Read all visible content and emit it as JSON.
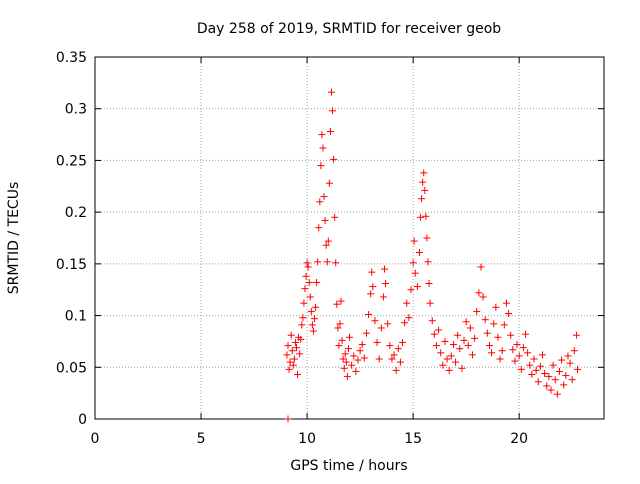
{
  "chart_data": {
    "type": "scatter",
    "title": "Day 258 of 2019, SRMTID for receiver geob",
    "xlabel": "GPS time / hours",
    "ylabel": "SRMTID / TECUs",
    "xlim": [
      0,
      24
    ],
    "ylim": [
      0,
      0.35
    ],
    "xticks": [
      0,
      5,
      10,
      15,
      20
    ],
    "yticks": [
      0,
      0.05,
      0.1,
      0.15,
      0.2,
      0.25,
      0.3,
      0.35
    ],
    "grid": true,
    "marker": "+",
    "color": "#ff0000",
    "series": [
      {
        "name": "SRMTID",
        "points": [
          [
            9.1,
            0.0
          ],
          [
            9.05,
            0.062
          ],
          [
            9.1,
            0.071
          ],
          [
            9.15,
            0.048
          ],
          [
            9.2,
            0.055
          ],
          [
            9.25,
            0.081
          ],
          [
            9.3,
            0.066
          ],
          [
            9.35,
            0.052
          ],
          [
            9.4,
            0.058
          ],
          [
            9.45,
            0.074
          ],
          [
            9.5,
            0.069
          ],
          [
            9.55,
            0.043
          ],
          [
            9.6,
            0.079
          ],
          [
            9.65,
            0.063
          ],
          [
            9.7,
            0.077
          ],
          [
            9.75,
            0.091
          ],
          [
            9.8,
            0.098
          ],
          [
            9.85,
            0.112
          ],
          [
            9.9,
            0.126
          ],
          [
            9.95,
            0.138
          ],
          [
            10.0,
            0.151
          ],
          [
            10.05,
            0.147
          ],
          [
            10.1,
            0.132
          ],
          [
            10.15,
            0.118
          ],
          [
            10.2,
            0.104
          ],
          [
            10.25,
            0.091
          ],
          [
            10.3,
            0.085
          ],
          [
            10.35,
            0.097
          ],
          [
            10.4,
            0.108
          ],
          [
            10.45,
            0.132
          ],
          [
            10.5,
            0.152
          ],
          [
            10.55,
            0.185
          ],
          [
            10.6,
            0.21
          ],
          [
            10.65,
            0.245
          ],
          [
            10.7,
            0.275
          ],
          [
            10.75,
            0.262
          ],
          [
            10.8,
            0.215
          ],
          [
            10.85,
            0.192
          ],
          [
            10.9,
            0.168
          ],
          [
            10.95,
            0.152
          ],
          [
            11.0,
            0.172
          ],
          [
            11.05,
            0.228
          ],
          [
            11.1,
            0.278
          ],
          [
            11.15,
            0.316
          ],
          [
            11.2,
            0.298
          ],
          [
            11.25,
            0.251
          ],
          [
            11.3,
            0.195
          ],
          [
            11.35,
            0.151
          ],
          [
            11.4,
            0.111
          ],
          [
            11.45,
            0.088
          ],
          [
            11.5,
            0.071
          ],
          [
            11.55,
            0.092
          ],
          [
            11.6,
            0.114
          ],
          [
            11.65,
            0.076
          ],
          [
            11.7,
            0.058
          ],
          [
            11.75,
            0.049
          ],
          [
            11.8,
            0.063
          ],
          [
            11.85,
            0.055
          ],
          [
            11.9,
            0.041
          ],
          [
            11.95,
            0.068
          ],
          [
            12.0,
            0.079
          ],
          [
            12.1,
            0.052
          ],
          [
            12.2,
            0.061
          ],
          [
            12.3,
            0.046
          ],
          [
            12.4,
            0.057
          ],
          [
            12.5,
            0.066
          ],
          [
            12.6,
            0.072
          ],
          [
            12.7,
            0.059
          ],
          [
            12.8,
            0.083
          ],
          [
            12.9,
            0.101
          ],
          [
            13.0,
            0.121
          ],
          [
            13.05,
            0.142
          ],
          [
            13.1,
            0.128
          ],
          [
            13.2,
            0.095
          ],
          [
            13.3,
            0.074
          ],
          [
            13.4,
            0.058
          ],
          [
            13.5,
            0.088
          ],
          [
            13.6,
            0.118
          ],
          [
            13.65,
            0.145
          ],
          [
            13.7,
            0.131
          ],
          [
            13.8,
            0.092
          ],
          [
            13.9,
            0.071
          ],
          [
            14.0,
            0.058
          ],
          [
            14.1,
            0.062
          ],
          [
            14.2,
            0.047
          ],
          [
            14.3,
            0.068
          ],
          [
            14.4,
            0.055
          ],
          [
            14.5,
            0.074
          ],
          [
            14.6,
            0.093
          ],
          [
            14.7,
            0.112
          ],
          [
            14.8,
            0.098
          ],
          [
            14.9,
            0.125
          ],
          [
            15.0,
            0.151
          ],
          [
            15.05,
            0.172
          ],
          [
            15.1,
            0.141
          ],
          [
            15.2,
            0.128
          ],
          [
            15.3,
            0.161
          ],
          [
            15.35,
            0.195
          ],
          [
            15.4,
            0.213
          ],
          [
            15.45,
            0.229
          ],
          [
            15.5,
            0.238
          ],
          [
            15.55,
            0.221
          ],
          [
            15.6,
            0.196
          ],
          [
            15.65,
            0.175
          ],
          [
            15.7,
            0.152
          ],
          [
            15.75,
            0.131
          ],
          [
            15.8,
            0.112
          ],
          [
            15.9,
            0.095
          ],
          [
            16.0,
            0.082
          ],
          [
            16.1,
            0.071
          ],
          [
            16.2,
            0.086
          ],
          [
            16.3,
            0.064
          ],
          [
            16.4,
            0.052
          ],
          [
            16.5,
            0.075
          ],
          [
            16.6,
            0.058
          ],
          [
            16.7,
            0.047
          ],
          [
            16.8,
            0.061
          ],
          [
            16.9,
            0.072
          ],
          [
            17.0,
            0.055
          ],
          [
            17.1,
            0.081
          ],
          [
            17.2,
            0.068
          ],
          [
            17.3,
            0.049
          ],
          [
            17.4,
            0.076
          ],
          [
            17.5,
            0.094
          ],
          [
            17.6,
            0.071
          ],
          [
            17.7,
            0.088
          ],
          [
            17.8,
            0.062
          ],
          [
            17.9,
            0.078
          ],
          [
            18.0,
            0.104
          ],
          [
            18.1,
            0.122
          ],
          [
            18.2,
            0.147
          ],
          [
            18.3,
            0.118
          ],
          [
            18.4,
            0.096
          ],
          [
            18.5,
            0.083
          ],
          [
            18.6,
            0.071
          ],
          [
            18.7,
            0.064
          ],
          [
            18.8,
            0.092
          ],
          [
            18.9,
            0.108
          ],
          [
            19.0,
            0.079
          ],
          [
            19.1,
            0.058
          ],
          [
            19.2,
            0.066
          ],
          [
            19.3,
            0.091
          ],
          [
            19.4,
            0.112
          ],
          [
            19.5,
            0.102
          ],
          [
            19.6,
            0.081
          ],
          [
            19.7,
            0.067
          ],
          [
            19.8,
            0.056
          ],
          [
            19.9,
            0.072
          ],
          [
            20.0,
            0.061
          ],
          [
            20.1,
            0.048
          ],
          [
            20.2,
            0.069
          ],
          [
            20.3,
            0.082
          ],
          [
            20.4,
            0.064
          ],
          [
            20.5,
            0.052
          ],
          [
            20.6,
            0.043
          ],
          [
            20.7,
            0.058
          ],
          [
            20.8,
            0.047
          ],
          [
            20.9,
            0.036
          ],
          [
            21.0,
            0.051
          ],
          [
            21.1,
            0.062
          ],
          [
            21.2,
            0.044
          ],
          [
            21.3,
            0.032
          ],
          [
            21.4,
            0.041
          ],
          [
            21.5,
            0.028
          ],
          [
            21.6,
            0.052
          ],
          [
            21.7,
            0.038
          ],
          [
            21.8,
            0.024
          ],
          [
            21.9,
            0.046
          ],
          [
            22.0,
            0.057
          ],
          [
            22.1,
            0.033
          ],
          [
            22.2,
            0.042
          ],
          [
            22.3,
            0.061
          ],
          [
            22.4,
            0.054
          ],
          [
            22.5,
            0.038
          ],
          [
            22.6,
            0.066
          ],
          [
            22.7,
            0.081
          ],
          [
            22.75,
            0.048
          ]
        ]
      }
    ]
  }
}
